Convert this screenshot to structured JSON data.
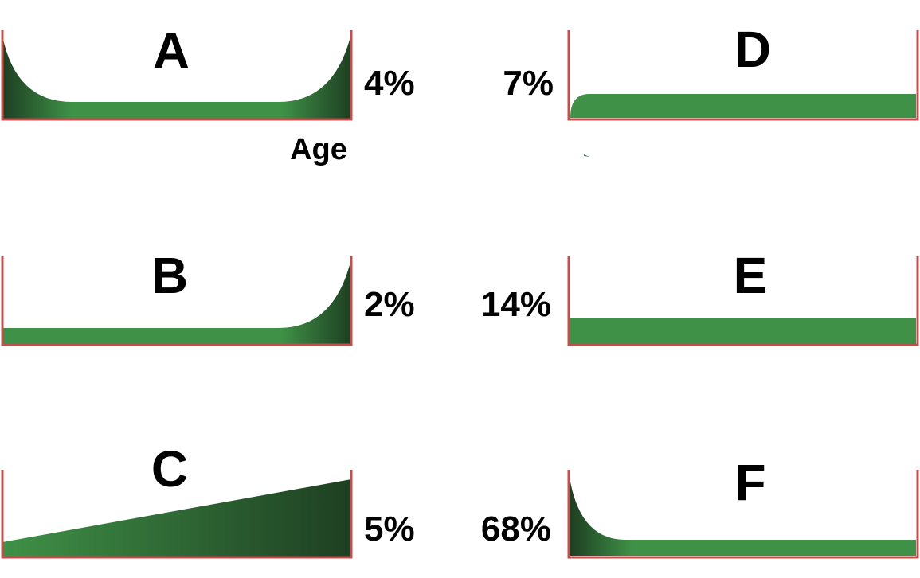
{
  "axis_caption": "Age",
  "colors": {
    "axis": "#c0504d",
    "fill_light": "#3f9147",
    "fill_dark": "#1e3f22"
  },
  "panels": [
    {
      "letter": "A",
      "percent": "4%"
    },
    {
      "letter": "B",
      "percent": "2%"
    },
    {
      "letter": "C",
      "percent": "5%"
    },
    {
      "letter": "D",
      "percent": "7%"
    },
    {
      "letter": "E",
      "percent": "14%"
    },
    {
      "letter": "F",
      "percent": "68%"
    }
  ]
}
